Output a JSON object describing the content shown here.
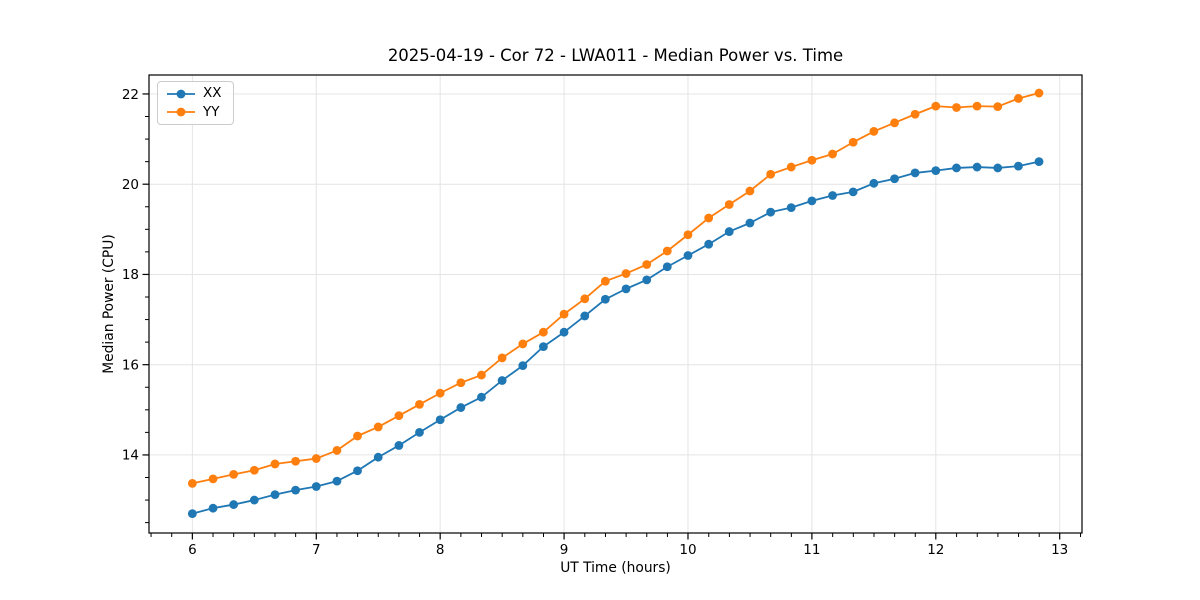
{
  "figure": {
    "background": "#ffffff"
  },
  "chart_data": {
    "type": "line",
    "title": "2025-04-19 - Cor 72 - LWA011 - Median Power vs. Time",
    "xlabel": "UT Time (hours)",
    "ylabel": "Median Power (CPU)",
    "grid": true,
    "legend_position": "upper-left",
    "xlim": [
      5.65,
      13.18
    ],
    "ylim": [
      12.27,
      22.42
    ],
    "xticks": [
      6,
      7,
      8,
      9,
      10,
      11,
      12,
      13
    ],
    "yticks": [
      14,
      16,
      18,
      20,
      22
    ],
    "x_minor_step": 0.1667,
    "y_minor_step": 0.5,
    "x": [
      6.0,
      6.167,
      6.333,
      6.5,
      6.667,
      6.833,
      7.0,
      7.167,
      7.333,
      7.5,
      7.667,
      7.833,
      8.0,
      8.167,
      8.333,
      8.5,
      8.667,
      8.833,
      9.0,
      9.167,
      9.333,
      9.5,
      9.667,
      9.833,
      10.0,
      10.167,
      10.333,
      10.5,
      10.667,
      10.833,
      11.0,
      11.167,
      11.333,
      11.5,
      11.667,
      11.833,
      12.0,
      12.167,
      12.333,
      12.5,
      12.667,
      12.833
    ],
    "series": [
      {
        "name": "XX",
        "color": "#1f77b4",
        "values": [
          12.7,
          12.82,
          12.9,
          13.0,
          13.12,
          13.22,
          13.3,
          13.42,
          13.65,
          13.95,
          14.21,
          14.5,
          14.78,
          15.05,
          15.28,
          15.65,
          15.98,
          16.4,
          16.72,
          17.08,
          17.45,
          17.68,
          17.88,
          18.17,
          18.42,
          18.67,
          18.95,
          19.14,
          19.38,
          19.48,
          19.63,
          19.75,
          19.83,
          20.02,
          20.12,
          20.25,
          20.3,
          20.36,
          20.38,
          20.36,
          20.4,
          20.5
        ]
      },
      {
        "name": "YY",
        "color": "#ff7f0e",
        "values": [
          13.37,
          13.47,
          13.57,
          13.66,
          13.8,
          13.86,
          13.92,
          14.1,
          14.42,
          14.62,
          14.87,
          15.12,
          15.37,
          15.6,
          15.77,
          16.15,
          16.46,
          16.72,
          17.12,
          17.46,
          17.85,
          18.02,
          18.22,
          18.52,
          18.88,
          19.25,
          19.55,
          19.85,
          20.22,
          20.38,
          20.53,
          20.67,
          20.93,
          21.17,
          21.36,
          21.55,
          21.73,
          21.7,
          21.73,
          21.72,
          21.9,
          22.02
        ]
      }
    ]
  },
  "colors": {
    "grid": "#e4e4e4",
    "spine": "#000000",
    "tick": "#000000",
    "text": "#000000",
    "legend_border": "#cccccc"
  },
  "layout_values": {
    "marker_radius": 4.4,
    "line_width": 1.8
  }
}
